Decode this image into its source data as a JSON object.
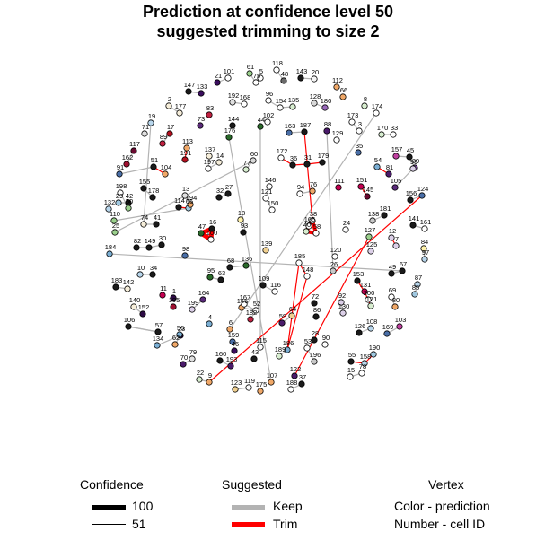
{
  "title_line1": "Prediction at confidence level 50",
  "title_line2": "suggested trimming to size 2",
  "legend": {
    "confidence": {
      "title": "Confidence",
      "high_label": "100",
      "low_label": "51"
    },
    "suggested": {
      "title": "Suggested",
      "keep_label": "Keep",
      "trim_label": "Trim",
      "keep_color": "#b3b3b3",
      "trim_color": "#ff0000"
    },
    "vertex": {
      "title": "Vertex",
      "line1": "Color - prediction",
      "line2": "Number - cell ID"
    }
  },
  "chart_data": {
    "type": "network",
    "title": "Prediction at confidence level 50 suggested trimming to size 2",
    "node_ids": [
      1,
      2,
      3,
      4,
      5,
      6,
      7,
      8,
      9,
      10,
      11,
      12,
      13,
      14,
      15,
      16,
      17,
      18,
      19,
      20,
      21,
      22,
      23,
      24,
      25,
      26,
      27,
      28,
      29,
      30,
      31,
      32,
      33,
      34,
      35,
      36,
      37,
      38,
      39,
      40,
      41,
      42,
      43,
      44,
      45,
      46,
      47,
      48,
      49,
      50,
      51,
      52,
      53,
      54,
      55,
      56,
      57,
      58,
      59,
      60,
      61,
      62,
      63,
      64,
      65,
      66,
      67,
      68,
      69,
      70,
      71,
      72,
      73,
      74,
      75,
      76,
      77,
      78,
      79,
      80,
      81,
      82,
      83,
      84,
      85,
      86,
      87,
      88,
      89,
      90,
      91,
      92,
      93,
      94,
      95,
      96,
      97,
      98,
      99,
      100,
      101,
      102,
      103,
      104,
      105,
      106,
      107,
      108,
      109,
      110,
      111,
      112,
      113,
      114,
      115,
      116,
      117,
      118,
      119,
      120,
      121,
      122,
      123,
      124,
      125,
      126,
      127,
      128,
      129,
      130,
      131,
      132,
      133,
      134,
      135,
      136,
      137,
      138,
      139,
      140,
      141,
      142,
      143,
      144,
      145,
      146,
      147,
      148,
      149,
      150,
      151,
      152,
      153,
      154,
      155,
      156,
      157,
      158,
      159,
      160,
      161,
      162,
      163,
      164,
      165,
      166,
      167,
      168,
      169,
      170,
      171,
      172,
      173,
      174,
      175,
      176,
      177,
      178,
      179,
      180,
      181,
      182,
      183,
      184,
      185,
      186,
      187,
      188,
      189,
      190,
      191,
      192,
      193,
      194,
      195,
      196,
      197,
      198,
      199,
      200
    ],
    "trim_edges": [
      [
        54,
        81
      ],
      [
        172,
        36
      ],
      [
        36,
        31
      ],
      [
        31,
        179
      ],
      [
        151,
        145
      ],
      [
        9,
        124
      ],
      [
        114,
        65
      ],
      [
        104,
        51
      ],
      [
        131,
        171
      ],
      [
        153,
        131
      ],
      [
        55,
        158
      ],
      [
        158,
        190
      ],
      [
        186,
        148
      ],
      [
        148,
        185
      ],
      [
        185,
        186
      ],
      [
        122,
        127
      ],
      [
        16,
        47
      ],
      [
        47,
        100
      ],
      [
        100,
        16
      ],
      [
        40,
        38
      ],
      [
        38,
        58
      ],
      [
        58,
        40
      ],
      [
        12,
        7
      ],
      [
        113,
        191
      ],
      [
        38,
        187
      ]
    ],
    "keep_edges": [
      [
        61,
        75
      ],
      [
        118,
        48
      ],
      [
        143,
        20
      ],
      [
        101,
        21
      ],
      [
        147,
        133
      ],
      [
        2,
        177
      ],
      [
        192,
        168
      ],
      [
        96,
        154
      ],
      [
        154,
        135
      ],
      [
        128,
        180
      ],
      [
        6,
        174
      ],
      [
        173,
        3
      ],
      [
        170,
        33
      ],
      [
        19,
        74
      ],
      [
        89,
        17
      ],
      [
        163,
        187
      ],
      [
        88,
        26
      ],
      [
        117,
        162
      ],
      [
        91,
        51
      ],
      [
        137,
        197
      ],
      [
        197,
        14
      ],
      [
        77,
        60
      ],
      [
        45,
        39
      ],
      [
        99,
        105
      ],
      [
        155,
        178
      ],
      [
        156,
        124
      ],
      [
        198,
        50
      ],
      [
        110,
        65
      ],
      [
        74,
        41
      ],
      [
        82,
        149
      ],
      [
        149,
        30
      ],
      [
        184,
        67
      ],
      [
        10,
        34
      ],
      [
        183,
        142
      ],
      [
        95,
        63
      ],
      [
        68,
        136
      ],
      [
        199,
        164
      ],
      [
        167,
        52
      ],
      [
        182,
        52
      ],
      [
        64,
        59
      ],
      [
        92,
        130
      ],
      [
        69,
        80
      ],
      [
        140,
        152
      ],
      [
        106,
        57
      ],
      [
        134,
        23
      ],
      [
        62,
        23
      ],
      [
        70,
        79
      ],
      [
        160,
        193
      ],
      [
        44,
        115
      ],
      [
        189,
        186
      ],
      [
        53,
        196
      ],
      [
        126,
        108
      ],
      [
        169,
        103
      ],
      [
        22,
        9
      ],
      [
        123,
        119
      ],
      [
        176,
        107
      ],
      [
        188,
        37
      ],
      [
        15,
        78
      ],
      [
        116,
        109
      ],
      [
        85,
        87
      ],
      [
        49,
        67
      ],
      [
        161,
        141
      ],
      [
        84,
        97
      ],
      [
        146,
        121
      ],
      [
        121,
        150
      ],
      [
        32,
        27
      ],
      [
        13,
        194
      ],
      [
        166,
        52
      ],
      [
        157,
        45
      ],
      [
        57,
        106
      ],
      [
        181,
        138
      ],
      [
        200,
        171
      ],
      [
        29,
        42
      ],
      [
        76,
        94
      ],
      [
        25,
        60
      ]
    ],
    "confidence_legend": [
      100,
      51
    ],
    "legend_entries": [
      "Keep",
      "Trim"
    ]
  }
}
